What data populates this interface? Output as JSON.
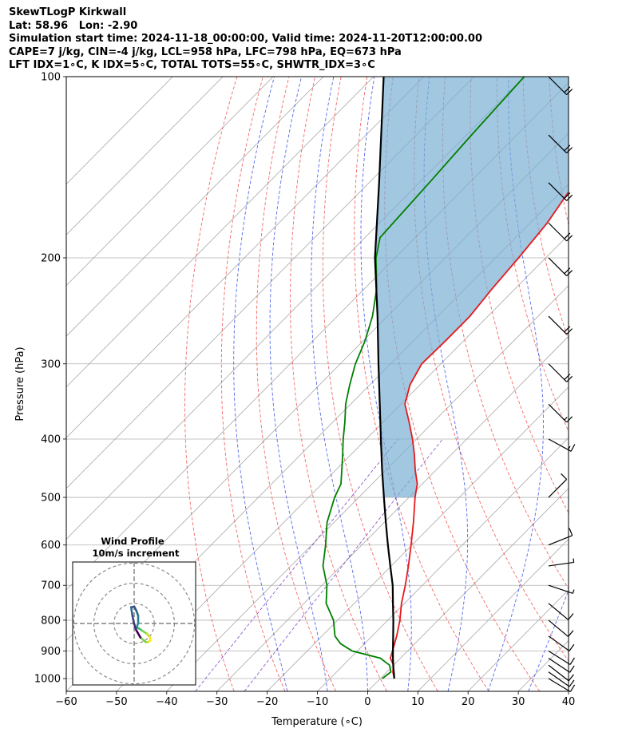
{
  "header": {
    "line1": "SkewTLogP Kirkwall",
    "line2": "Lat: 58.96   Lon: -2.90",
    "line3": "Simulation start time: 2024-11-18_00:00:00, Valid time: 2024-11-20T12:00:00.00",
    "line4": "CAPE=7 j/kg, CIN=-4 j/kg, LCL=958 hPa, LFC=798 hPa, EQ=673 hPa",
    "line5": "LFT IDX=1∘C, K IDX=5∘C, TOTAL TOTS=55∘C, SHWTR_IDX=3∘C"
  },
  "chart_data": {
    "type": "line",
    "xlabel": "Temperature (∘C)",
    "ylabel": "Pressure (hPa)",
    "xlim": [
      -60,
      40
    ],
    "ylim": [
      1050,
      100
    ],
    "yscale": "log",
    "skew": true,
    "grid": true,
    "x_ticks": [
      "−60",
      "−50",
      "−40",
      "−30",
      "−20",
      "−10",
      "0",
      "10",
      "20",
      "30",
      "40"
    ],
    "x_tick_values": [
      -60,
      -50,
      -40,
      -30,
      -20,
      -10,
      0,
      10,
      20,
      30,
      40
    ],
    "y_ticks": [
      "100",
      "200",
      "300",
      "400",
      "500",
      "600",
      "700",
      "800",
      "900",
      "1000"
    ],
    "y_tick_values": [
      100,
      200,
      300,
      400,
      500,
      600,
      700,
      800,
      900,
      1000
    ],
    "series": [
      {
        "role": "temperature",
        "color": "#e41a1c",
        "points": [
          [
            1000,
            2.8
          ],
          [
            975,
            1.2
          ],
          [
            950,
            0
          ],
          [
            925,
            -2
          ],
          [
            900,
            -3
          ],
          [
            850,
            -5.1
          ],
          [
            800,
            -7.6
          ],
          [
            750,
            -10.6
          ],
          [
            700,
            -13.4
          ],
          [
            650,
            -16.6
          ],
          [
            600,
            -20.2
          ],
          [
            550,
            -24.2
          ],
          [
            500,
            -28.8
          ],
          [
            475,
            -31
          ],
          [
            450,
            -34.2
          ],
          [
            425,
            -37.3
          ],
          [
            400,
            -40.8
          ],
          [
            375,
            -44.8
          ],
          [
            350,
            -49.2
          ],
          [
            325,
            -52
          ],
          [
            300,
            -53.8
          ],
          [
            275,
            -53.6
          ],
          [
            250,
            -53.6
          ],
          [
            225,
            -54.6
          ],
          [
            200,
            -55.4
          ],
          [
            175,
            -56.6
          ],
          [
            150,
            -59
          ],
          [
            125,
            -61.4
          ],
          [
            100,
            -65.2
          ]
        ]
      },
      {
        "role": "dewpoint",
        "color": "#008000",
        "points": [
          [
            1000,
            0.4
          ],
          [
            975,
            0.8
          ],
          [
            950,
            -0.8
          ],
          [
            925,
            -4
          ],
          [
            900,
            -11
          ],
          [
            875,
            -14.8
          ],
          [
            850,
            -17.4
          ],
          [
            800,
            -20.8
          ],
          [
            750,
            -25.6
          ],
          [
            700,
            -29
          ],
          [
            650,
            -33.6
          ],
          [
            600,
            -37.2
          ],
          [
            550,
            -41.4
          ],
          [
            500,
            -44.8
          ],
          [
            475,
            -46.2
          ],
          [
            450,
            -48.8
          ],
          [
            425,
            -51.6
          ],
          [
            400,
            -54.6
          ],
          [
            375,
            -57.6
          ],
          [
            350,
            -61
          ],
          [
            325,
            -64
          ],
          [
            300,
            -67
          ],
          [
            275,
            -69.6
          ],
          [
            250,
            -73
          ],
          [
            225,
            -77.6
          ],
          [
            200,
            -83.8
          ],
          [
            185,
            -87
          ],
          [
            150,
            -88
          ],
          [
            125,
            -89
          ],
          [
            100,
            -90
          ]
        ]
      },
      {
        "role": "parcel",
        "color": "#000000",
        "points": [
          [
            1000,
            2.8
          ],
          [
            975,
            1.4
          ],
          [
            958,
            0.4
          ],
          [
            925,
            -1.5
          ],
          [
            900,
            -2.9
          ],
          [
            850,
            -5.8
          ],
          [
            800,
            -8.9
          ],
          [
            750,
            -12.3
          ],
          [
            700,
            -15.9
          ],
          [
            650,
            -20.2
          ],
          [
            600,
            -24.8
          ],
          [
            550,
            -29.7
          ],
          [
            500,
            -35
          ],
          [
            450,
            -40.8
          ],
          [
            400,
            -47.1
          ],
          [
            350,
            -54.2
          ],
          [
            300,
            -62.4
          ],
          [
            250,
            -72
          ],
          [
            200,
            -84
          ],
          [
            150,
            -98
          ],
          [
            100,
            -118
          ]
        ]
      }
    ],
    "wind_barbs": [
      {
        "p": 1000,
        "u": 10,
        "v": -6
      },
      {
        "p": 975,
        "u": 10,
        "v": -7
      },
      {
        "p": 950,
        "u": 9,
        "v": -7
      },
      {
        "p": 925,
        "u": 9,
        "v": -6
      },
      {
        "p": 900,
        "u": 8,
        "v": -5
      },
      {
        "p": 850,
        "u": 7,
        "v": -5
      },
      {
        "p": 800,
        "u": 6,
        "v": -5
      },
      {
        "p": 750,
        "u": 6,
        "v": -5
      },
      {
        "p": 700,
        "u": 6,
        "v": -2
      },
      {
        "p": 650,
        "u": 7,
        "v": 1
      },
      {
        "p": 600,
        "u": 10,
        "v": 4
      },
      {
        "p": 500,
        "u": 8,
        "v": 8
      },
      {
        "p": 400,
        "u": 11,
        "v": -6
      },
      {
        "p": 350,
        "u": 12,
        "v": -12
      },
      {
        "p": 300,
        "u": 14,
        "v": -14
      },
      {
        "p": 250,
        "u": 15,
        "v": -15
      },
      {
        "p": 200,
        "u": 15,
        "v": -15
      },
      {
        "p": 175,
        "u": 15,
        "v": -15
      },
      {
        "p": 150,
        "u": 15,
        "v": -15
      },
      {
        "p": 125,
        "u": 15,
        "v": -15
      },
      {
        "p": 100,
        "u": 13,
        "v": -13
      }
    ],
    "hodograph": {
      "title": "Wind Profile",
      "subtitle": "10m/s increment",
      "points": [
        [
          -1.2,
          6.5
        ],
        [
          0.1,
          6.6
        ],
        [
          0.9,
          5.0
        ],
        [
          1.6,
          3.1
        ],
        [
          1.6,
          0.2
        ],
        [
          1.0,
          -1.7
        ],
        [
          2.0,
          -2.0
        ],
        [
          3.2,
          -2.9
        ],
        [
          5.0,
          -4.0
        ],
        [
          6.2,
          -5.4
        ],
        [
          6.5,
          -6.8
        ],
        [
          5.4,
          -7.4
        ],
        [
          4.6,
          -7.4
        ],
        [
          2.5,
          -5.6
        ],
        [
          0.7,
          -2.4
        ],
        [
          -0.2,
          0.6
        ],
        [
          -0.8,
          3.8
        ],
        [
          -1.2,
          6.5
        ]
      ]
    }
  }
}
